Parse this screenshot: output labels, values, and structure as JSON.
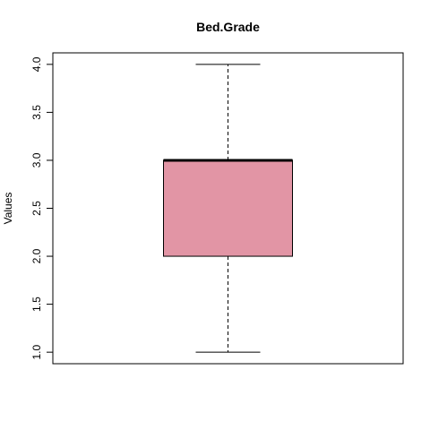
{
  "chart_data": {
    "type": "boxplot",
    "title": "Bed.Grade",
    "xlabel": "",
    "ylabel": "Values",
    "ylim": [
      0.88,
      4.12
    ],
    "yticks": [
      1.0,
      1.5,
      2.0,
      2.5,
      3.0,
      3.5,
      4.0
    ],
    "ytick_labels": [
      "1.0",
      "1.5",
      "2.0",
      "2.5",
      "3.0",
      "3.5",
      "4.0"
    ],
    "grid": false,
    "legend": "none",
    "box": {
      "min": 1.0,
      "q1": 2.0,
      "median": 3.0,
      "q3": 3.0,
      "max": 4.0,
      "fill_color": "#e295a5"
    }
  }
}
